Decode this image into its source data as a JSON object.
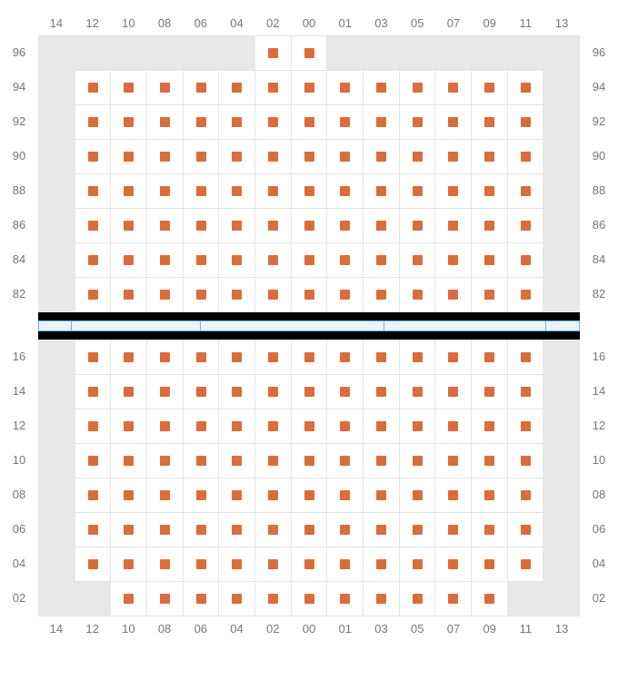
{
  "colors": {
    "marker": "#d96d3b",
    "unavailable_bg": "#e8e8e8",
    "available_bg": "#ffffff",
    "grid_line": "#e5e5e5",
    "label_text": "#777777",
    "divider_black": "#000000",
    "divider_bar_bg": "#e8f4fc",
    "divider_bar_border": "#6cb5e8"
  },
  "columns": [
    "14",
    "12",
    "10",
    "08",
    "06",
    "04",
    "02",
    "00",
    "01",
    "03",
    "05",
    "07",
    "09",
    "11",
    "13"
  ],
  "upper": {
    "row_labels": [
      "96",
      "94",
      "92",
      "90",
      "88",
      "86",
      "84",
      "82"
    ],
    "cells": [
      [
        "u",
        "u",
        "u",
        "u",
        "u",
        "u",
        "a",
        "a",
        "u",
        "u",
        "u",
        "u",
        "u",
        "u",
        "u"
      ],
      [
        "u",
        "a",
        "a",
        "a",
        "a",
        "a",
        "a",
        "a",
        "a",
        "a",
        "a",
        "a",
        "a",
        "a",
        "u"
      ],
      [
        "u",
        "a",
        "a",
        "a",
        "a",
        "a",
        "a",
        "a",
        "a",
        "a",
        "a",
        "a",
        "a",
        "a",
        "u"
      ],
      [
        "u",
        "a",
        "a",
        "a",
        "a",
        "a",
        "a",
        "a",
        "a",
        "a",
        "a",
        "a",
        "a",
        "a",
        "u"
      ],
      [
        "u",
        "a",
        "a",
        "a",
        "a",
        "a",
        "a",
        "a",
        "a",
        "a",
        "a",
        "a",
        "a",
        "a",
        "u"
      ],
      [
        "u",
        "a",
        "a",
        "a",
        "a",
        "a",
        "a",
        "a",
        "a",
        "a",
        "a",
        "a",
        "a",
        "a",
        "u"
      ],
      [
        "u",
        "a",
        "a",
        "a",
        "a",
        "a",
        "a",
        "a",
        "a",
        "a",
        "a",
        "a",
        "a",
        "a",
        "u"
      ],
      [
        "u",
        "a",
        "a",
        "a",
        "a",
        "a",
        "a",
        "a",
        "a",
        "a",
        "a",
        "a",
        "a",
        "a",
        "u"
      ]
    ]
  },
  "lower": {
    "row_labels": [
      "16",
      "14",
      "12",
      "10",
      "08",
      "06",
      "04",
      "02"
    ],
    "cells": [
      [
        "u",
        "a",
        "a",
        "a",
        "a",
        "a",
        "a",
        "a",
        "a",
        "a",
        "a",
        "a",
        "a",
        "a",
        "u"
      ],
      [
        "u",
        "a",
        "a",
        "a",
        "a",
        "a",
        "a",
        "a",
        "a",
        "a",
        "a",
        "a",
        "a",
        "a",
        "u"
      ],
      [
        "u",
        "a",
        "a",
        "a",
        "a",
        "a",
        "a",
        "a",
        "a",
        "a",
        "a",
        "a",
        "a",
        "a",
        "u"
      ],
      [
        "u",
        "a",
        "a",
        "a",
        "a",
        "a",
        "a",
        "a",
        "a",
        "a",
        "a",
        "a",
        "a",
        "a",
        "u"
      ],
      [
        "u",
        "a",
        "a",
        "a",
        "a",
        "a",
        "a",
        "a",
        "a",
        "a",
        "a",
        "a",
        "a",
        "a",
        "u"
      ],
      [
        "u",
        "a",
        "a",
        "a",
        "a",
        "a",
        "a",
        "a",
        "a",
        "a",
        "a",
        "a",
        "a",
        "a",
        "u"
      ],
      [
        "u",
        "a",
        "a",
        "a",
        "a",
        "a",
        "a",
        "a",
        "a",
        "a",
        "a",
        "a",
        "a",
        "a",
        "u"
      ],
      [
        "u",
        "u",
        "a",
        "a",
        "a",
        "a",
        "a",
        "a",
        "a",
        "a",
        "a",
        "a",
        "a",
        "u",
        "u"
      ]
    ]
  },
  "divider_segments_pct": [
    6,
    24,
    34,
    30,
    6
  ]
}
